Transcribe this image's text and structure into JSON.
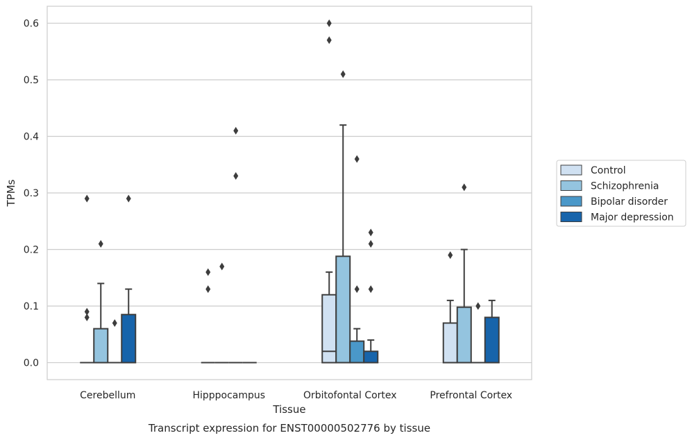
{
  "caption": "Transcript expression for ENST00000502776 by tissue",
  "chart_data": {
    "type": "box",
    "xlabel": "Tissue",
    "ylabel": "TPMs",
    "ylim": [
      -0.03,
      0.63
    ],
    "yticks": [
      "0.0",
      "0.1",
      "0.2",
      "0.3",
      "0.4",
      "0.5",
      "0.6"
    ],
    "grid": "horizontal",
    "legend_placement": "right",
    "categories": [
      "Cerebellum",
      "Hipppocampus",
      "Orbitofontal Cortex",
      "Prefrontal Cortex"
    ],
    "series": [
      {
        "name": "Control",
        "color": "#d0e1f2",
        "boxes": [
          {
            "q1": 0,
            "median": 0,
            "q3": 0,
            "whislo": 0,
            "whishi": 0,
            "fliers": [
              0.08,
              0.09,
              0.29
            ]
          },
          {
            "q1": 0,
            "median": 0,
            "q3": 0,
            "whislo": 0,
            "whishi": 0,
            "fliers": [
              0.13,
              0.16
            ]
          },
          {
            "q1": 0,
            "median": 0.02,
            "q3": 0.12,
            "whislo": 0,
            "whishi": 0.16,
            "fliers": [
              0.57,
              0.6
            ]
          },
          {
            "q1": 0,
            "median": 0,
            "q3": 0.07,
            "whislo": 0,
            "whishi": 0.11,
            "fliers": [
              0.19
            ]
          }
        ]
      },
      {
        "name": "Schizophrenia",
        "color": "#94c4df",
        "boxes": [
          {
            "q1": 0,
            "median": 0,
            "q3": 0.06,
            "whislo": 0,
            "whishi": 0.14,
            "fliers": [
              0.21
            ]
          },
          {
            "q1": 0,
            "median": 0,
            "q3": 0,
            "whislo": 0,
            "whishi": 0,
            "fliers": [
              0.17
            ]
          },
          {
            "q1": 0,
            "median": 0,
            "q3": 0.188,
            "whislo": 0,
            "whishi": 0.42,
            "fliers": [
              0.51
            ]
          },
          {
            "q1": 0,
            "median": 0,
            "q3": 0.098,
            "whislo": 0,
            "whishi": 0.2,
            "fliers": [
              0.31
            ]
          }
        ]
      },
      {
        "name": "Bipolar disorder",
        "color": "#4a98c9",
        "boxes": [
          {
            "q1": 0,
            "median": 0,
            "q3": 0,
            "whislo": 0,
            "whishi": 0,
            "fliers": [
              0.07
            ]
          },
          {
            "q1": 0,
            "median": 0,
            "q3": 0,
            "whislo": 0,
            "whishi": 0,
            "fliers": [
              0.33,
              0.41
            ]
          },
          {
            "q1": 0,
            "median": 0,
            "q3": 0.038,
            "whislo": 0,
            "whishi": 0.06,
            "fliers": [
              0.13,
              0.36
            ]
          },
          {
            "q1": 0,
            "median": 0,
            "q3": 0,
            "whislo": 0,
            "whishi": 0,
            "fliers": [
              0.1
            ]
          }
        ]
      },
      {
        "name": "Major depression",
        "color": "#1764ab",
        "boxes": [
          {
            "q1": 0,
            "median": 0,
            "q3": 0.085,
            "whislo": 0,
            "whishi": 0.13,
            "fliers": [
              0.29
            ]
          },
          {
            "q1": 0,
            "median": 0,
            "q3": 0,
            "whislo": 0,
            "whishi": 0,
            "fliers": []
          },
          {
            "q1": 0,
            "median": 0,
            "q3": 0.02,
            "whislo": 0,
            "whishi": 0.04,
            "fliers": [
              0.13,
              0.21,
              0.23
            ]
          },
          {
            "q1": 0,
            "median": 0,
            "q3": 0.08,
            "whislo": 0,
            "whishi": 0.11,
            "fliers": []
          }
        ]
      }
    ]
  }
}
